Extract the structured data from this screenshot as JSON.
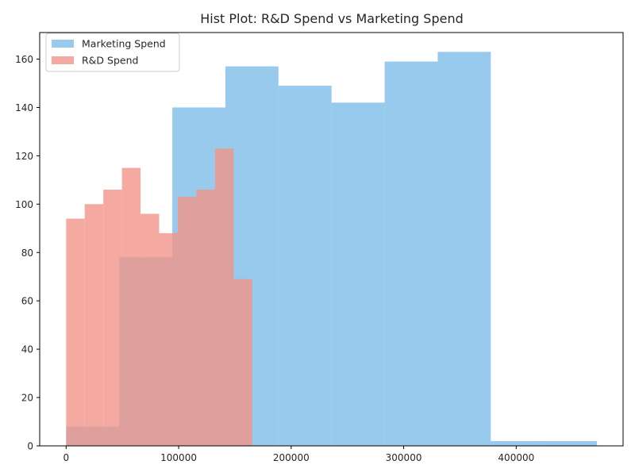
{
  "chart_data": {
    "type": "histogram",
    "title": "Hist Plot: R&D Spend vs Marketing Spend",
    "xlabel": "",
    "ylabel": "",
    "xlim": [
      -23500,
      495000
    ],
    "ylim": [
      0,
      171
    ],
    "x_ticks": [
      0,
      100000,
      200000,
      300000,
      400000
    ],
    "x_tick_labels": [
      "0",
      "100000",
      "200000",
      "300000",
      "400000"
    ],
    "y_ticks": [
      0,
      20,
      40,
      60,
      80,
      100,
      120,
      140,
      160
    ],
    "y_tick_labels": [
      "0",
      "20",
      "40",
      "60",
      "80",
      "100",
      "120",
      "140",
      "160"
    ],
    "grid": false,
    "legend_position": "upper left",
    "series": [
      {
        "name": "Marketing Spend",
        "color": "#85c1e9",
        "opacity": 0.85,
        "bin_edges": [
          0,
          47178,
          94356,
          141534,
          188712,
          235890,
          283068,
          330246,
          377424,
          424602,
          471780
        ],
        "counts": [
          8,
          78,
          140,
          157,
          149,
          142,
          159,
          163,
          2,
          2
        ]
      },
      {
        "name": "R&D Spend",
        "color": "#f1948a",
        "opacity": 0.8,
        "bin_edges": [
          0,
          16535,
          33070,
          49605,
          66140,
          82675,
          99210,
          115745,
          132280,
          148815,
          165350
        ],
        "counts": [
          94,
          100,
          106,
          115,
          96,
          88,
          103,
          106,
          123,
          69
        ]
      }
    ]
  }
}
